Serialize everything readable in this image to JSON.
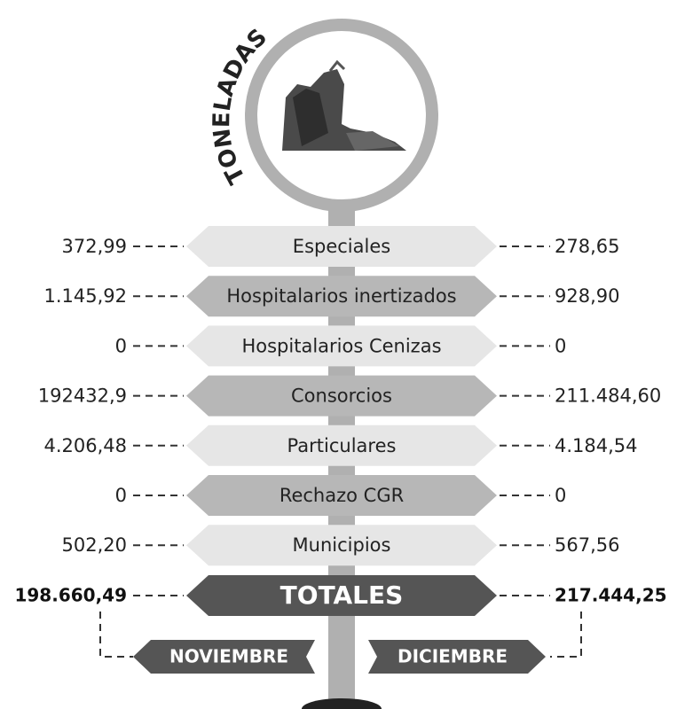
{
  "title": "TONELADAS",
  "rows": [
    {
      "label": "Especiales",
      "left": "372,99",
      "right": "278,65"
    },
    {
      "label": "Hospitalarios inertizados",
      "left": "1.145,92",
      "right": "928,90"
    },
    {
      "label": "Hospitalarios Cenizas",
      "left": "0",
      "right": "0"
    },
    {
      "label": "Consorcios",
      "left": "192432,9",
      "right": "211.484,60"
    },
    {
      "label": "Particulares",
      "left": "4.206,48",
      "right": "4.184,54"
    },
    {
      "label": "Rechazo CGR",
      "left": "0",
      "right": "0"
    },
    {
      "label": "Municipios",
      "left": "502,20",
      "right": "567,56"
    }
  ],
  "totals": {
    "label": "TOTALES",
    "left": "198.660,49",
    "right": "217.444,25"
  },
  "months": {
    "left": "NOVIEMBRE",
    "right": "DICIEMBRE"
  }
}
